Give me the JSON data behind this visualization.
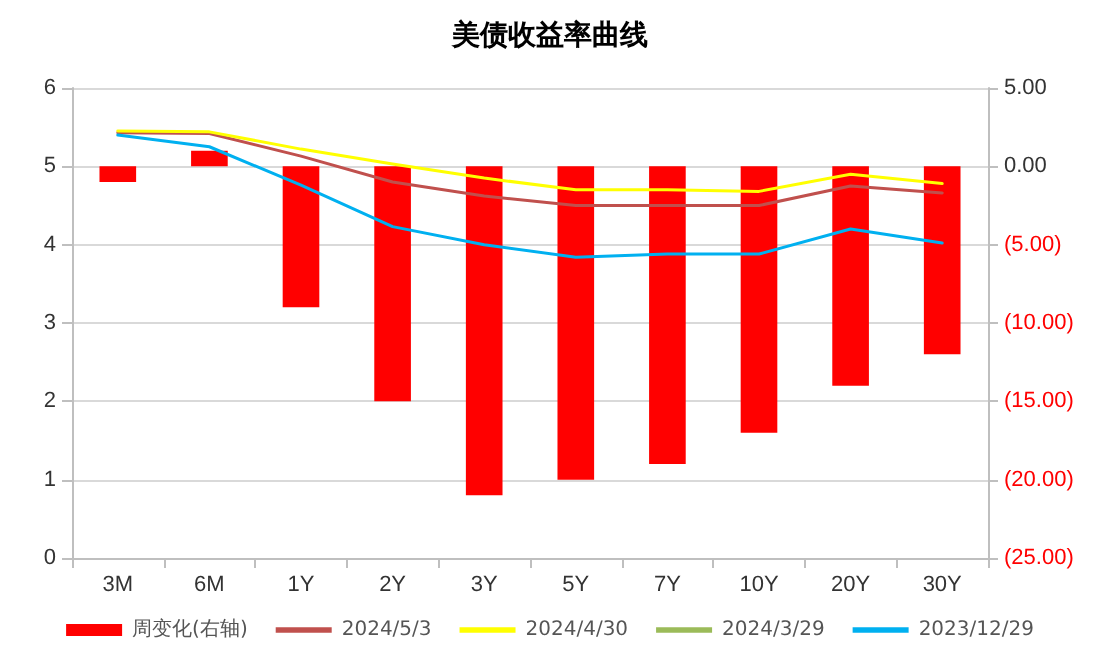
{
  "chart_data": {
    "type": "line",
    "title": "美债收益率曲线",
    "categories": [
      "3M",
      "6M",
      "1Y",
      "2Y",
      "3Y",
      "5Y",
      "7Y",
      "10Y",
      "20Y",
      "30Y"
    ],
    "series": [
      {
        "name": "周变化(右轴)",
        "type": "bar",
        "axis": "y2",
        "color": "#ff0000",
        "values": [
          -1,
          1,
          -9,
          -15,
          -21,
          -20,
          -19,
          -17,
          -14,
          -12
        ]
      },
      {
        "name": "2024/5/3",
        "color": "#c0504d",
        "values": [
          5.43,
          5.42,
          5.13,
          4.8,
          4.62,
          4.5,
          4.5,
          4.5,
          4.75,
          4.66
        ]
      },
      {
        "name": "2024/4/30",
        "color": "#ffff00",
        "values": [
          5.45,
          5.44,
          5.22,
          5.03,
          4.85,
          4.7,
          4.7,
          4.68,
          4.9,
          4.78
        ]
      },
      {
        "name": "2024/3/29",
        "color": "#9bbb59",
        "values": [
          null,
          null,
          null,
          null,
          null,
          null,
          null,
          null,
          null,
          null
        ]
      },
      {
        "name": "2023/12/29",
        "color": "#00b0f0",
        "values": [
          5.4,
          5.25,
          4.76,
          4.23,
          4.0,
          3.84,
          3.88,
          3.88,
          4.2,
          4.02
        ]
      }
    ],
    "ylim": [
      0,
      6
    ],
    "yticks": [
      0,
      1,
      2,
      3,
      4,
      5,
      6
    ],
    "y2lim": [
      -25,
      5
    ],
    "y2ticks": [
      {
        "value": -25,
        "label": "(25.00)"
      },
      {
        "value": -20,
        "label": "(20.00)"
      },
      {
        "value": -15,
        "label": "(15.00)"
      },
      {
        "value": -10,
        "label": "(10.00)"
      },
      {
        "value": -5,
        "label": "(5.00)"
      },
      {
        "value": 0,
        "label": "0.00"
      },
      {
        "value": 5,
        "label": "5.00"
      }
    ],
    "grid": "y",
    "legend": "bottom",
    "marker": "none",
    "line_style": "solid"
  }
}
